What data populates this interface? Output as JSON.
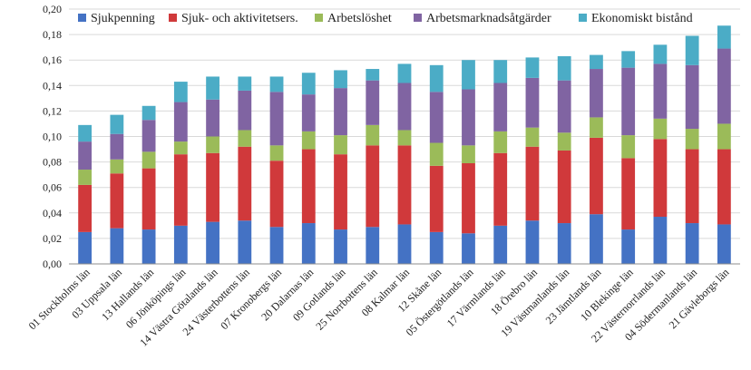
{
  "chart_data": {
    "type": "bar",
    "stacked": true,
    "categories": [
      "01 Stockholms län",
      "03 Uppsala län",
      "13 Hallands län",
      "06 Jönköpings län",
      "14 Västra Götalands län",
      "24 Västerbottens län",
      "07 Kronobergs län",
      "20 Dalarnas län",
      "09 Gotlands län",
      "25 Norrbottens län",
      "08 Kalmar län",
      "12 Skåne län",
      "05 Östergötlands län",
      "17 Värmlands län",
      "18 Örebro län",
      "19 Västmanlands län",
      "23 Jämtlands län",
      "10 Blekinge län",
      "22 Västernorrlands län",
      "04 Södermanlands län",
      "21 Gävleborgs län"
    ],
    "series": [
      {
        "name": "Sjukpenning",
        "color": "#4472c4",
        "values": [
          0.025,
          0.028,
          0.027,
          0.03,
          0.033,
          0.034,
          0.029,
          0.032,
          0.027,
          0.029,
          0.031,
          0.025,
          0.024,
          0.03,
          0.034,
          0.032,
          0.039,
          0.027,
          0.037,
          0.032,
          0.031
        ]
      },
      {
        "name": "Sjuk- och aktivitetsers.",
        "color": "#d0393b",
        "values": [
          0.037,
          0.043,
          0.048,
          0.056,
          0.054,
          0.058,
          0.052,
          0.058,
          0.059,
          0.064,
          0.062,
          0.052,
          0.055,
          0.057,
          0.058,
          0.057,
          0.06,
          0.056,
          0.061,
          0.058,
          0.059
        ]
      },
      {
        "name": "Arbetslöshet",
        "color": "#9bbb59",
        "values": [
          0.012,
          0.011,
          0.013,
          0.01,
          0.013,
          0.013,
          0.012,
          0.014,
          0.015,
          0.016,
          0.012,
          0.018,
          0.014,
          0.017,
          0.015,
          0.014,
          0.016,
          0.018,
          0.016,
          0.016,
          0.02
        ]
      },
      {
        "name": "Arbetsmarknadsåtgärder",
        "color": "#8064a2",
        "values": [
          0.022,
          0.02,
          0.025,
          0.031,
          0.029,
          0.031,
          0.042,
          0.029,
          0.037,
          0.035,
          0.037,
          0.04,
          0.044,
          0.038,
          0.039,
          0.041,
          0.038,
          0.053,
          0.043,
          0.05,
          0.059
        ]
      },
      {
        "name": "Ekonomiskt bistånd",
        "color": "#4bacc6",
        "values": [
          0.013,
          0.015,
          0.011,
          0.016,
          0.018,
          0.011,
          0.012,
          0.017,
          0.014,
          0.009,
          0.015,
          0.021,
          0.023,
          0.018,
          0.016,
          0.019,
          0.011,
          0.013,
          0.015,
          0.023,
          0.018
        ]
      }
    ],
    "ylim": [
      0,
      0.2
    ],
    "yticks": [
      "0,00",
      "0,02",
      "0,04",
      "0,06",
      "0,08",
      "0,10",
      "0,12",
      "0,14",
      "0,16",
      "0,18",
      "0,20"
    ],
    "grid": true,
    "legend": "top"
  }
}
